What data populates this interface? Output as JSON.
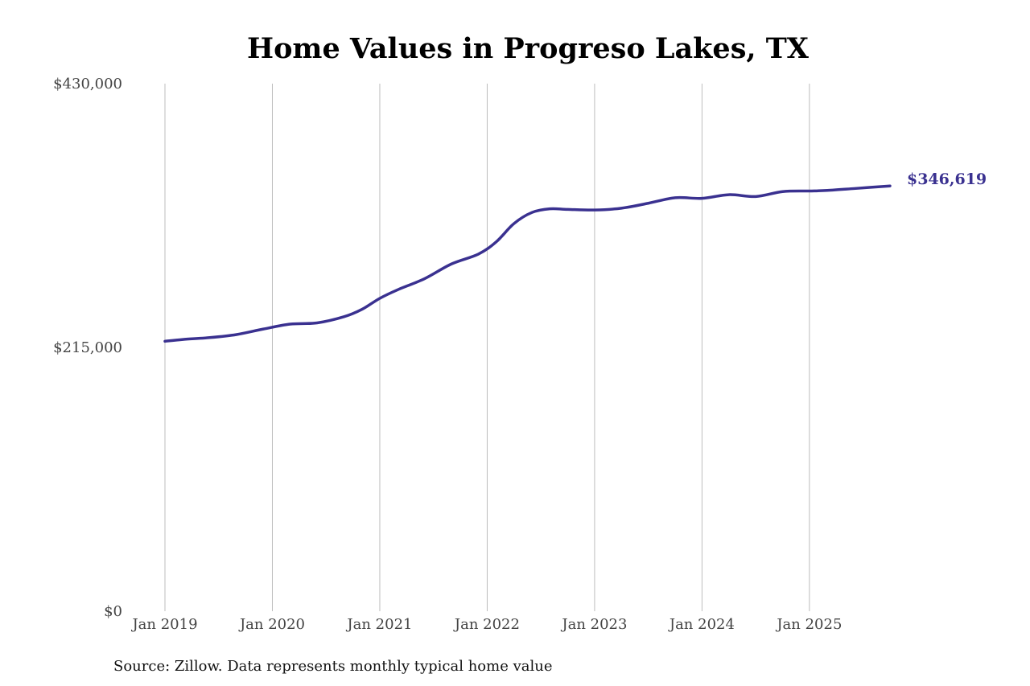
{
  "chart_data": {
    "type": "line",
    "title": "Home Values in Progreso Lakes, TX",
    "xlabel": "",
    "ylabel": "",
    "ylim": [
      0,
      430000
    ],
    "yticks": [
      {
        "value": 0,
        "label": "$0"
      },
      {
        "value": 215000,
        "label": "$215,000"
      },
      {
        "value": 430000,
        "label": "$430,000"
      }
    ],
    "xlim": [
      "2019-01",
      "2025-10"
    ],
    "xticks": [
      {
        "date": "2019-01",
        "label": "Jan 2019"
      },
      {
        "date": "2020-01",
        "label": "Jan 2020"
      },
      {
        "date": "2021-01",
        "label": "Jan 2021"
      },
      {
        "date": "2022-01",
        "label": "Jan 2022"
      },
      {
        "date": "2023-01",
        "label": "Jan 2023"
      },
      {
        "date": "2024-01",
        "label": "Jan 2024"
      },
      {
        "date": "2025-01",
        "label": "Jan 2025"
      }
    ],
    "grid": "vertical",
    "legend": "none",
    "series": [
      {
        "color": "#3a3190",
        "points": [
          {
            "date": "2019-01",
            "value": 220000
          },
          {
            "date": "2019-03",
            "value": 221500
          },
          {
            "date": "2019-06",
            "value": 223000
          },
          {
            "date": "2019-09",
            "value": 225500
          },
          {
            "date": "2019-12",
            "value": 230000
          },
          {
            "date": "2020-03",
            "value": 234000
          },
          {
            "date": "2020-06",
            "value": 235000
          },
          {
            "date": "2020-09",
            "value": 240000
          },
          {
            "date": "2020-11",
            "value": 246000
          },
          {
            "date": "2021-01",
            "value": 255000
          },
          {
            "date": "2021-03",
            "value": 262000
          },
          {
            "date": "2021-06",
            "value": 271000
          },
          {
            "date": "2021-09",
            "value": 283000
          },
          {
            "date": "2021-12",
            "value": 291000
          },
          {
            "date": "2022-02",
            "value": 301000
          },
          {
            "date": "2022-04",
            "value": 316000
          },
          {
            "date": "2022-06",
            "value": 325000
          },
          {
            "date": "2022-08",
            "value": 328000
          },
          {
            "date": "2022-10",
            "value": 327500
          },
          {
            "date": "2023-01",
            "value": 327000
          },
          {
            "date": "2023-04",
            "value": 328500
          },
          {
            "date": "2023-07",
            "value": 332500
          },
          {
            "date": "2023-10",
            "value": 337000
          },
          {
            "date": "2024-01",
            "value": 336500
          },
          {
            "date": "2024-04",
            "value": 339500
          },
          {
            "date": "2024-07",
            "value": 338000
          },
          {
            "date": "2024-10",
            "value": 342000
          },
          {
            "date": "2025-01",
            "value": 342500
          },
          {
            "date": "2025-03",
            "value": 343000
          },
          {
            "date": "2025-06",
            "value": 344500
          },
          {
            "date": "2025-10",
            "value": 346619
          }
        ]
      }
    ],
    "annotations": [
      {
        "label": "$346,619",
        "date": "2025-10",
        "value": 346619
      }
    ]
  },
  "source": "Source: Zillow. Data represents monthly typical home value"
}
